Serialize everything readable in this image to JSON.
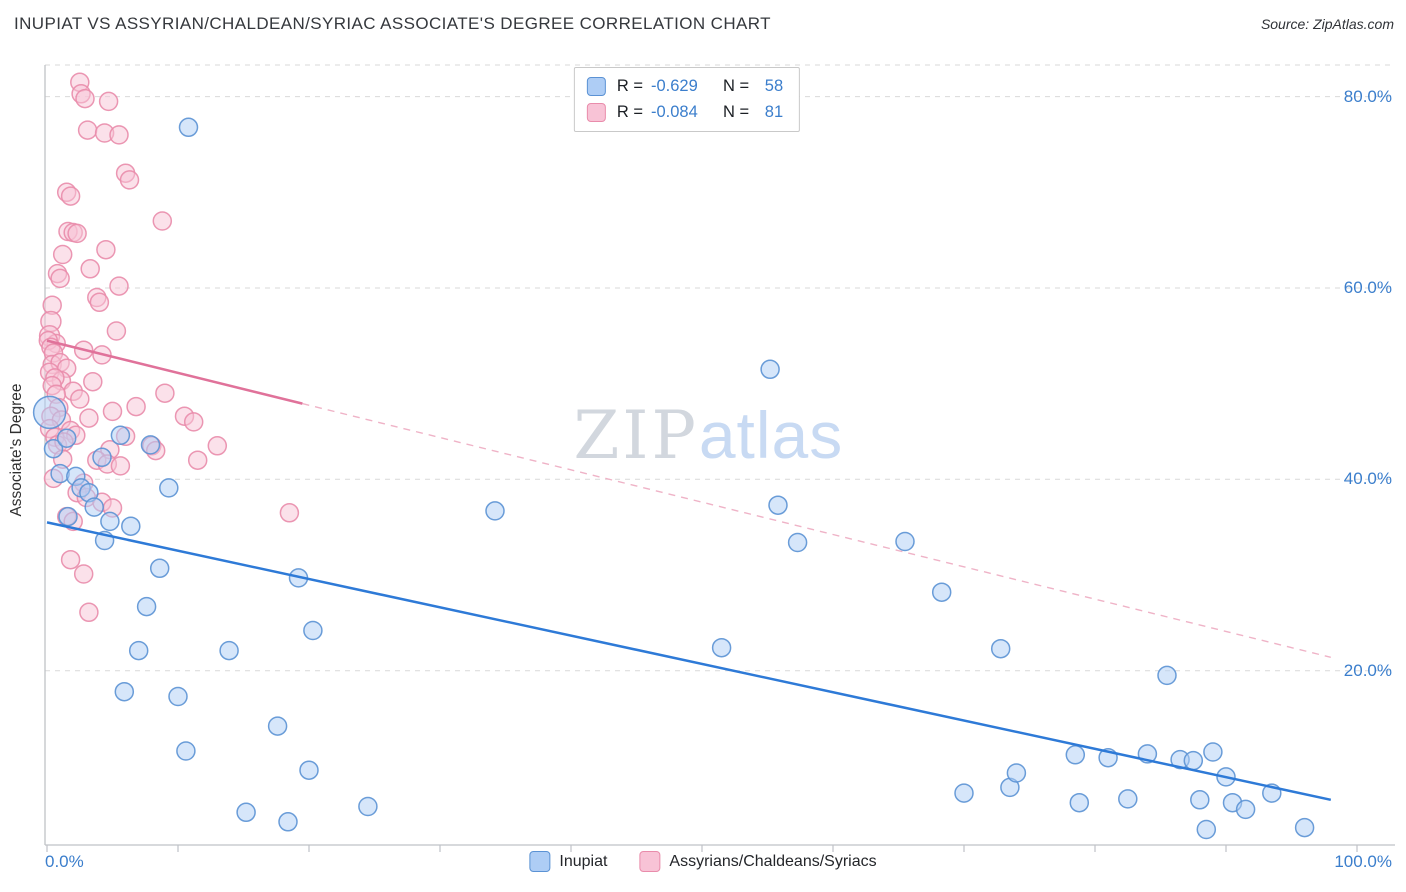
{
  "header": {
    "title": "INUPIAT VS ASSYRIAN/CHALDEAN/SYRIAC ASSOCIATE'S DEGREE CORRELATION CHART",
    "source": "Source: ZipAtlas.com"
  },
  "watermark": {
    "zip": "ZIP",
    "atlas": "atlas"
  },
  "legend_box": {
    "rows": [
      {
        "r_label": "R =",
        "r_value": "-0.629",
        "n_label": "N =",
        "n_value": "58"
      },
      {
        "r_label": "R =",
        "r_value": "-0.084",
        "n_label": "N =",
        "n_value": "81"
      }
    ]
  },
  "axes": {
    "y_label": "Associate's Degree",
    "y_ticks": [
      "80.0%",
      "60.0%",
      "40.0%",
      "20.0%"
    ],
    "x_tick_left": "0.0%",
    "x_tick_right": "100.0%"
  },
  "bottom_legend": {
    "items": [
      {
        "label": "Inupiat"
      },
      {
        "label": "Assyrians/Chaldeans/Syriacs"
      }
    ]
  },
  "chart_data": {
    "type": "scatter",
    "title": "Inupiat vs Assyrian/Chaldean/Syriac Associate's Degree Correlation Chart",
    "xlabel": "",
    "ylabel": "Associate's Degree",
    "xlim": [
      0,
      103
    ],
    "ylim": [
      0,
      83.5
    ],
    "grid": true,
    "legend_position": "top-center",
    "y_gridlines": [
      20,
      40,
      60,
      80
    ],
    "y_tick_values": [
      80,
      60,
      40,
      20
    ],
    "x_tick_values": [
      0,
      100
    ],
    "series": [
      {
        "name": "Inupiat",
        "slug": "inupiat",
        "R": -0.629,
        "N": 58,
        "fill": "#aecdf5",
        "stroke": "#5b92d4",
        "line_color": "#2e7ad7",
        "trend": {
          "x1": 0,
          "y1": 35.5,
          "x2": 98,
          "y2": 6.5
        },
        "points": [
          [
            0.2,
            47.0,
            16
          ],
          [
            0.5,
            43.2,
            9
          ],
          [
            1.0,
            40.6,
            9
          ],
          [
            1.5,
            44.3,
            9
          ],
          [
            1.6,
            36.1,
            9
          ],
          [
            2.2,
            40.3,
            9
          ],
          [
            2.6,
            39.1,
            9
          ],
          [
            3.2,
            38.6,
            9
          ],
          [
            3.6,
            37.1,
            9
          ],
          [
            4.2,
            42.3,
            9
          ],
          [
            4.4,
            33.6,
            9
          ],
          [
            4.8,
            35.6,
            9
          ],
          [
            5.6,
            44.6,
            9
          ],
          [
            5.9,
            17.8,
            9
          ],
          [
            6.4,
            35.1,
            9
          ],
          [
            7.0,
            22.1,
            9
          ],
          [
            7.6,
            26.7,
            9
          ],
          [
            7.9,
            43.6,
            9
          ],
          [
            8.6,
            30.7,
            9
          ],
          [
            9.3,
            39.1,
            9
          ],
          [
            10.0,
            17.3,
            9
          ],
          [
            10.6,
            11.6,
            9
          ],
          [
            10.8,
            76.8,
            9
          ],
          [
            13.9,
            22.1,
            9
          ],
          [
            15.2,
            5.2,
            9
          ],
          [
            17.6,
            14.2,
            9
          ],
          [
            18.4,
            4.2,
            9
          ],
          [
            19.2,
            29.7,
            9
          ],
          [
            20.0,
            9.6,
            9
          ],
          [
            20.3,
            24.2,
            9
          ],
          [
            24.5,
            5.8,
            9
          ],
          [
            34.2,
            36.7,
            9
          ],
          [
            51.5,
            22.4,
            9
          ],
          [
            55.2,
            51.5,
            9
          ],
          [
            55.8,
            37.3,
            9
          ],
          [
            57.3,
            33.4,
            9
          ],
          [
            65.5,
            33.5,
            9
          ],
          [
            68.3,
            28.2,
            9
          ],
          [
            70.0,
            7.2,
            9
          ],
          [
            72.8,
            22.3,
            9
          ],
          [
            73.5,
            7.8,
            9
          ],
          [
            74.0,
            9.3,
            9
          ],
          [
            78.5,
            11.2,
            9
          ],
          [
            78.8,
            6.2,
            9
          ],
          [
            81.0,
            10.9,
            9
          ],
          [
            82.5,
            6.6,
            9
          ],
          [
            84.0,
            11.3,
            9
          ],
          [
            85.5,
            19.5,
            9
          ],
          [
            86.5,
            10.7,
            9
          ],
          [
            87.5,
            10.6,
            9
          ],
          [
            88.0,
            6.5,
            9
          ],
          [
            88.5,
            3.4,
            9
          ],
          [
            89.0,
            11.5,
            9
          ],
          [
            90.0,
            8.9,
            9
          ],
          [
            90.5,
            6.2,
            9
          ],
          [
            91.5,
            5.5,
            9
          ],
          [
            93.5,
            7.2,
            9
          ],
          [
            96.0,
            3.6,
            9
          ]
        ]
      },
      {
        "name": "Assyrians/Chaldeans/Syriacs",
        "slug": "assyrians-chaldeans-syriacs",
        "R": -0.084,
        "N": 81,
        "fill": "#f8c3d6",
        "stroke": "#e98cab",
        "line_color": "#e0729a",
        "dash_color": "#efb3c7",
        "trend": {
          "x1": 0,
          "y1": 54.5,
          "x2": 98,
          "y2": 21.4,
          "solid_to": 19.5
        },
        "points": [
          [
            2.5,
            81.5,
            9
          ],
          [
            2.6,
            80.3,
            9
          ],
          [
            2.9,
            79.8,
            9
          ],
          [
            4.7,
            79.5,
            9
          ],
          [
            3.1,
            76.5,
            9
          ],
          [
            4.4,
            76.2,
            9
          ],
          [
            5.5,
            76.0,
            9
          ],
          [
            6.0,
            72.0,
            9
          ],
          [
            6.3,
            71.3,
            9
          ],
          [
            1.5,
            70.0,
            9
          ],
          [
            1.8,
            69.6,
            9
          ],
          [
            8.8,
            67.0,
            9
          ],
          [
            1.6,
            65.9,
            9
          ],
          [
            2.0,
            65.8,
            9
          ],
          [
            2.3,
            65.7,
            9
          ],
          [
            1.2,
            63.5,
            9
          ],
          [
            4.5,
            64.0,
            9
          ],
          [
            0.8,
            61.5,
            9
          ],
          [
            1.0,
            61.0,
            9
          ],
          [
            3.3,
            62.0,
            9
          ],
          [
            5.5,
            60.2,
            9
          ],
          [
            0.4,
            58.2,
            9
          ],
          [
            3.8,
            59.0,
            9
          ],
          [
            4.0,
            58.5,
            9
          ],
          [
            0.3,
            56.5,
            10
          ],
          [
            5.3,
            55.5,
            9
          ],
          [
            0.2,
            55.0,
            10
          ],
          [
            0.7,
            54.2,
            9
          ],
          [
            0.1,
            54.5,
            9
          ],
          [
            0.3,
            53.8,
            9
          ],
          [
            0.5,
            53.2,
            9
          ],
          [
            2.8,
            53.5,
            9
          ],
          [
            4.2,
            53.0,
            9
          ],
          [
            0.4,
            52.0,
            9
          ],
          [
            1.0,
            52.2,
            9
          ],
          [
            1.5,
            51.6,
            9
          ],
          [
            0.2,
            51.2,
            9
          ],
          [
            1.1,
            50.3,
            9
          ],
          [
            0.6,
            50.6,
            9
          ],
          [
            3.5,
            50.2,
            9
          ],
          [
            0.4,
            49.8,
            9
          ],
          [
            9.0,
            49.0,
            9
          ],
          [
            2.0,
            49.2,
            9
          ],
          [
            0.7,
            48.9,
            9
          ],
          [
            2.5,
            48.4,
            9
          ],
          [
            0.9,
            47.5,
            9
          ],
          [
            6.8,
            47.6,
            9
          ],
          [
            0.3,
            46.6,
            9
          ],
          [
            1.1,
            46.2,
            9
          ],
          [
            5.0,
            47.1,
            9
          ],
          [
            3.2,
            46.4,
            9
          ],
          [
            10.5,
            46.6,
            9
          ],
          [
            11.2,
            46.0,
            9
          ],
          [
            0.2,
            45.3,
            9
          ],
          [
            1.8,
            45.1,
            9
          ],
          [
            2.2,
            44.6,
            9
          ],
          [
            0.6,
            44.4,
            9
          ],
          [
            6.0,
            44.5,
            9
          ],
          [
            0.8,
            43.6,
            9
          ],
          [
            1.3,
            43.9,
            9
          ],
          [
            4.8,
            43.1,
            9
          ],
          [
            8.0,
            43.5,
            9
          ],
          [
            8.3,
            43.0,
            9
          ],
          [
            13.0,
            43.5,
            9
          ],
          [
            1.2,
            42.1,
            9
          ],
          [
            3.8,
            42.0,
            9
          ],
          [
            4.6,
            41.6,
            9
          ],
          [
            5.6,
            41.4,
            9
          ],
          [
            11.5,
            42.0,
            9
          ],
          [
            0.5,
            40.1,
            9
          ],
          [
            2.8,
            39.6,
            9
          ],
          [
            2.3,
            38.6,
            9
          ],
          [
            3.0,
            38.1,
            9
          ],
          [
            4.2,
            37.6,
            9
          ],
          [
            5.0,
            37.0,
            9
          ],
          [
            1.5,
            36.1,
            9
          ],
          [
            2.0,
            35.6,
            9
          ],
          [
            18.5,
            36.5,
            9
          ],
          [
            1.8,
            31.6,
            9
          ],
          [
            2.8,
            30.1,
            9
          ],
          [
            3.2,
            26.1,
            9
          ]
        ]
      }
    ]
  }
}
